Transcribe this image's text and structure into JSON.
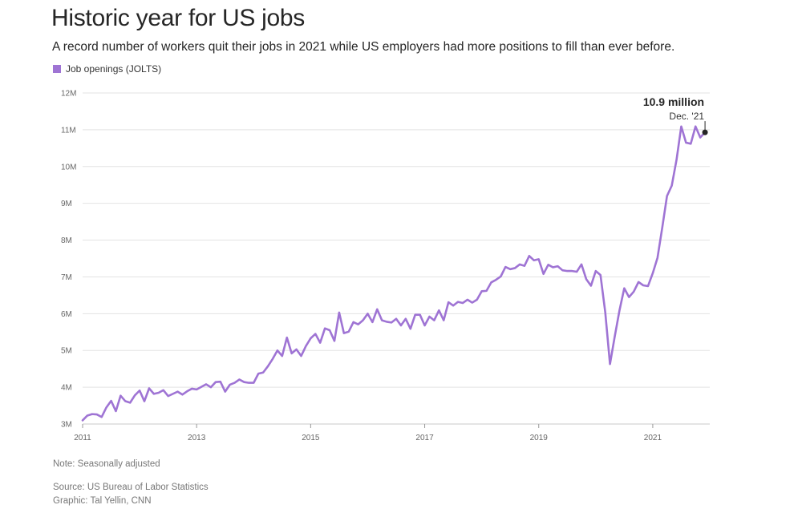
{
  "header": {
    "title": "Historic year for US jobs",
    "subtitle": "A record number of workers quit their jobs in 2021 while US employers had more positions to fill than ever before."
  },
  "footer": {
    "note": "Note: Seasonally adjusted",
    "source": "Source: US Bureau of Labor Statistics",
    "credit": "Graphic: Tal Yellin, CNN"
  },
  "colors": {
    "series": "#9f74d4",
    "grid": "#e3e3e3",
    "marker": "#262626"
  },
  "chart_data": {
    "type": "line",
    "title": "Historic year for US jobs",
    "xlabel": "",
    "ylabel": "",
    "legend_position": "top-left",
    "grid": "horizontal",
    "ylim": [
      3,
      12
    ],
    "yticks": [
      3,
      4,
      5,
      6,
      7,
      8,
      9,
      10,
      11,
      12
    ],
    "ytick_labels": [
      "3M",
      "4M",
      "5M",
      "6M",
      "7M",
      "8M",
      "9M",
      "10M",
      "11M",
      "12M"
    ],
    "xticks": [
      2011,
      2013,
      2015,
      2017,
      2019,
      2021
    ],
    "xtick_labels": [
      "2011",
      "2013",
      "2015",
      "2017",
      "2019",
      "2021"
    ],
    "x_start": "2011-01",
    "x_end": "2021-12",
    "series": [
      {
        "name": "Job openings (JOLTS)",
        "unit": "millions",
        "start": "2011-01",
        "frequency": "monthly",
        "values": [
          3.1,
          3.23,
          3.27,
          3.26,
          3.19,
          3.45,
          3.63,
          3.35,
          3.77,
          3.62,
          3.58,
          3.78,
          3.91,
          3.62,
          3.97,
          3.82,
          3.85,
          3.92,
          3.76,
          3.82,
          3.88,
          3.8,
          3.89,
          3.96,
          3.94,
          4.01,
          4.08,
          4.0,
          4.14,
          4.15,
          3.88,
          4.07,
          4.12,
          4.21,
          4.14,
          4.12,
          4.12,
          4.37,
          4.4,
          4.57,
          4.77,
          5.0,
          4.85,
          5.35,
          4.92,
          5.03,
          4.85,
          5.12,
          5.33,
          5.45,
          5.21,
          5.6,
          5.55,
          5.26,
          6.03,
          5.47,
          5.51,
          5.77,
          5.71,
          5.82,
          6.0,
          5.77,
          6.12,
          5.82,
          5.78,
          5.76,
          5.86,
          5.68,
          5.86,
          5.59,
          5.97,
          5.97,
          5.68,
          5.92,
          5.82,
          6.09,
          5.82,
          6.31,
          6.22,
          6.32,
          6.29,
          6.38,
          6.3,
          6.38,
          6.61,
          6.62,
          6.85,
          6.92,
          7.01,
          7.27,
          7.21,
          7.24,
          7.34,
          7.3,
          7.57,
          7.45,
          7.48,
          7.08,
          7.33,
          7.26,
          7.29,
          7.18,
          7.16,
          7.16,
          7.14,
          7.34,
          6.94,
          6.76,
          7.16,
          7.05,
          6.04,
          4.63,
          5.38,
          6.09,
          6.69,
          6.45,
          6.6,
          6.86,
          6.77,
          6.75,
          7.1,
          7.52,
          8.34,
          9.2,
          9.48,
          10.18,
          11.09,
          10.65,
          10.62,
          11.09,
          10.79,
          10.93
        ]
      }
    ],
    "annotation": {
      "value_label": "10.9 million",
      "date_label": "Dec. '21"
    }
  }
}
